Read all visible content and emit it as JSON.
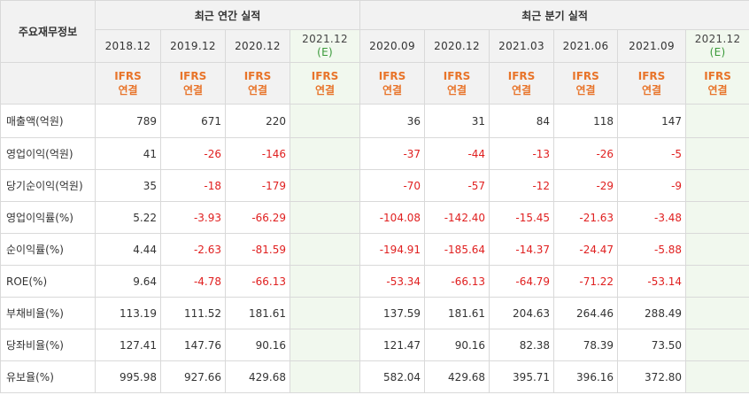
{
  "table": {
    "corner_label": "주요재무정보",
    "group_annual": "최근 연간 실적",
    "group_quarterly": "최근 분기 실적",
    "periods": [
      {
        "label": "2018.12",
        "est": ""
      },
      {
        "label": "2019.12",
        "est": ""
      },
      {
        "label": "2020.12",
        "est": ""
      },
      {
        "label": "2021.12",
        "est": "(E)"
      },
      {
        "label": "2020.09",
        "est": ""
      },
      {
        "label": "2020.12",
        "est": ""
      },
      {
        "label": "2021.03",
        "est": ""
      },
      {
        "label": "2021.06",
        "est": ""
      },
      {
        "label": "2021.09",
        "est": ""
      },
      {
        "label": "2021.12",
        "est": "(E)"
      }
    ],
    "basis_top": "IFRS",
    "basis_bottom": "연결",
    "rows": [
      {
        "label": "매출액(억원)",
        "values": [
          "789",
          "671",
          "220",
          "",
          "36",
          "31",
          "84",
          "118",
          "147",
          ""
        ]
      },
      {
        "label": "영업이익(억원)",
        "values": [
          "41",
          "-26",
          "-146",
          "",
          "-37",
          "-44",
          "-13",
          "-26",
          "-5",
          ""
        ]
      },
      {
        "label": "당기순이익(억원)",
        "values": [
          "35",
          "-18",
          "-179",
          "",
          "-70",
          "-57",
          "-12",
          "-29",
          "-9",
          ""
        ]
      },
      {
        "label": "영업이익률(%)",
        "values": [
          "5.22",
          "-3.93",
          "-66.29",
          "",
          "-104.08",
          "-142.40",
          "-15.45",
          "-21.63",
          "-3.48",
          ""
        ]
      },
      {
        "label": "순이익률(%)",
        "values": [
          "4.44",
          "-2.63",
          "-81.59",
          "",
          "-194.91",
          "-185.64",
          "-14.37",
          "-24.47",
          "-5.88",
          ""
        ]
      },
      {
        "label": "ROE(%)",
        "values": [
          "9.64",
          "-4.78",
          "-66.13",
          "",
          "-53.34",
          "-66.13",
          "-64.79",
          "-71.22",
          "-53.14",
          ""
        ]
      },
      {
        "label": "부채비율(%)",
        "values": [
          "113.19",
          "111.52",
          "181.61",
          "",
          "137.59",
          "181.61",
          "204.63",
          "264.46",
          "288.49",
          ""
        ]
      },
      {
        "label": "당좌비율(%)",
        "values": [
          "127.41",
          "147.76",
          "90.16",
          "",
          "121.47",
          "90.16",
          "82.38",
          "78.39",
          "73.50",
          ""
        ]
      },
      {
        "label": "유보율(%)",
        "values": [
          "995.98",
          "927.66",
          "429.68",
          "",
          "582.04",
          "429.68",
          "395.71",
          "396.16",
          "372.80",
          ""
        ]
      }
    ]
  },
  "colors": {
    "negative": "#e02020",
    "basis": "#e8742a",
    "estimate_bg": "#f1f8ee",
    "estimate_mark": "#3a9a3a"
  }
}
